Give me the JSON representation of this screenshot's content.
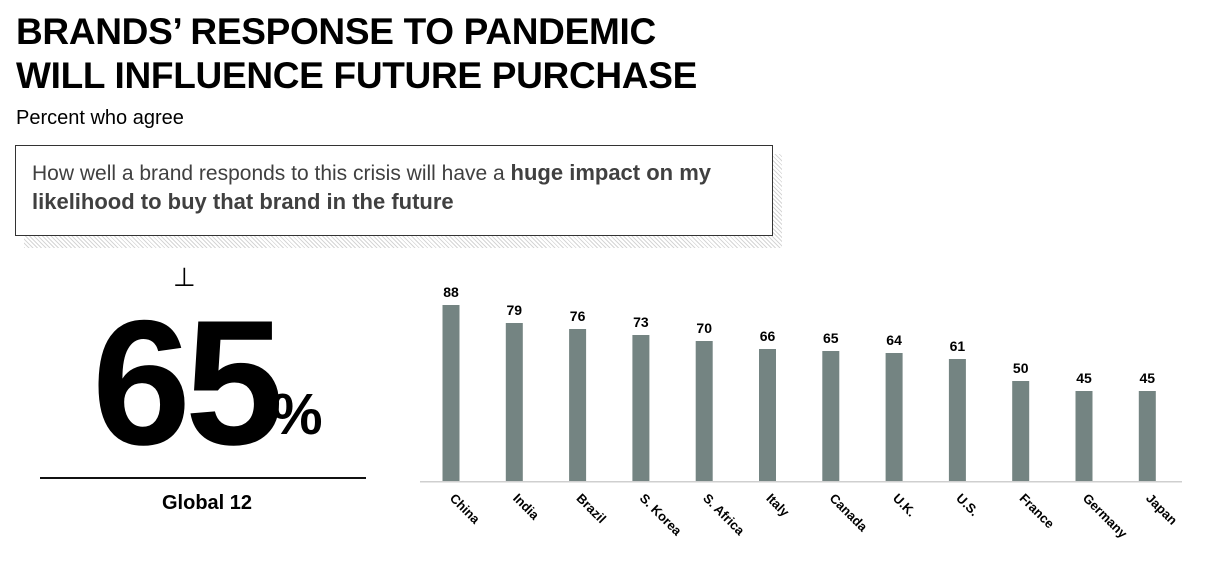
{
  "header": {
    "title_line1": "BRANDS’ RESPONSE TO PANDEMIC",
    "title_line2": "WILL INFLUENCE FUTURE PURCHASE",
    "subtitle": "Percent who agree"
  },
  "quote": {
    "text_regular": "How well a brand responds to this crisis will have a ",
    "text_bold": "huge impact on my likelihood to buy that brand in the future"
  },
  "global": {
    "value": "65",
    "percent_sign": "%",
    "label": "Global 12",
    "tick_glyph": "⊥"
  },
  "colors": {
    "bar": "#748482",
    "axis": "#cfcfcf"
  },
  "chart_data": {
    "type": "bar",
    "categories": [
      "China",
      "India",
      "Brazil",
      "S. Korea",
      "S. Africa",
      "Italy",
      "Canada",
      "U.K.",
      "U.S.",
      "France",
      "Germany",
      "Japan"
    ],
    "values": [
      88,
      79,
      76,
      73,
      70,
      66,
      65,
      64,
      61,
      50,
      45,
      45
    ],
    "title": "",
    "xlabel": "",
    "ylabel": "",
    "ylim": [
      0,
      100
    ],
    "grid": false,
    "legend": "none",
    "data_labels": true
  }
}
